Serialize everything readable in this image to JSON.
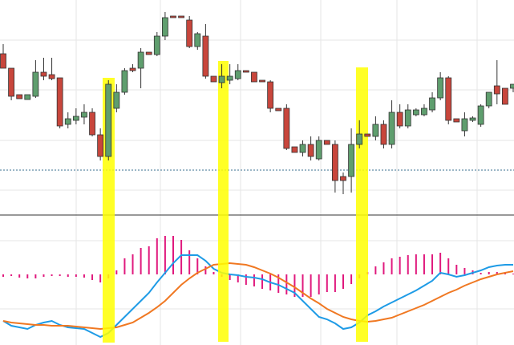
{
  "chart_data": [
    {
      "type": "candlestick",
      "open": [
        203,
        185,
        152,
        146,
        150,
        180,
        177,
        173,
        115,
        120,
        124,
        130,
        102,
        75,
        135,
        155,
        185,
        185,
        205,
        202,
        225,
        250,
        250,
        245,
        212,
        225,
        175,
        167,
        170,
        172,
        182,
        180,
        170,
        168,
        135,
        135,
        87,
        80,
        90,
        72,
        95,
        90,
        50,
        50,
        90,
        103,
        100,
        115,
        90,
        130,
        113,
        127,
        127,
        133,
        148,
        173,
        122,
        107,
        120,
        115,
        138,
        163,
        160,
        160
      ],
      "high": [
        215,
        185,
        152,
        152,
        195,
        198,
        198,
        173,
        130,
        135,
        140,
        135,
        110,
        170,
        165,
        185,
        190,
        210,
        205,
        230,
        255,
        250,
        250,
        250,
        230,
        240,
        175,
        190,
        190,
        190,
        182,
        180,
        170,
        170,
        135,
        140,
        87,
        95,
        100,
        100,
        95,
        95,
        55,
        110,
        120,
        103,
        125,
        120,
        145,
        140,
        140,
        135,
        140,
        155,
        180,
        175,
        122,
        130,
        125,
        140,
        155,
        195,
        160,
        165
      ],
      "low": [
        185,
        145,
        147,
        146,
        148,
        170,
        170,
        110,
        110,
        115,
        115,
        100,
        70,
        70,
        130,
        152,
        180,
        160,
        202,
        200,
        220,
        248,
        248,
        210,
        208,
        172,
        168,
        160,
        165,
        170,
        180,
        168,
        168,
        130,
        132,
        83,
        80,
        75,
        70,
        70,
        90,
        30,
        28,
        30,
        85,
        100,
        95,
        85,
        85,
        110,
        110,
        125,
        125,
        130,
        145,
        115,
        118,
        100,
        118,
        112,
        135,
        140,
        140,
        155
      ],
      "close": [
        185,
        150,
        147,
        152,
        180,
        175,
        172,
        113,
        122,
        125,
        130,
        102,
        75,
        165,
        155,
        182,
        182,
        205,
        202,
        225,
        248,
        248,
        248,
        212,
        228,
        175,
        168,
        175,
        175,
        182,
        180,
        168,
        168,
        135,
        132,
        85,
        80,
        90,
        75,
        95,
        90,
        45,
        45,
        90,
        103,
        100,
        115,
        90,
        130,
        113,
        133,
        133,
        135,
        148,
        173,
        120,
        118,
        122,
        123,
        138,
        155,
        153,
        140,
        165
      ],
      "up_color": "#5f9e6e",
      "down_color": "#c8463c",
      "ylim": [
        0,
        270
      ],
      "ref_line": 58
    },
    {
      "type": "macd",
      "histogram": [
        -3,
        -2,
        -4,
        -5,
        -5,
        -3,
        -2,
        -2,
        -3,
        -3,
        -4,
        -7,
        -10,
        -5,
        5,
        20,
        25,
        33,
        35,
        45,
        48,
        48,
        43,
        30,
        20,
        10,
        3,
        -3,
        -7,
        -10,
        -13,
        -15,
        -18,
        -20,
        -23,
        -25,
        -28,
        -28,
        -28,
        -25,
        -22,
        -22,
        -18,
        -12,
        -5,
        3,
        10,
        15,
        20,
        22,
        24,
        25,
        25,
        25,
        27,
        20,
        12,
        8,
        5,
        2,
        3,
        3,
        2,
        1
      ],
      "histogram_color": "#e0197d",
      "series": [
        {
          "color": "#1e9be6",
          "values": [
            -58,
            -64,
            -66,
            -68,
            -63,
            -60,
            -58,
            -63,
            -66,
            -67,
            -68,
            -73,
            -78,
            -73,
            -63,
            -53,
            -43,
            -33,
            -23,
            -10,
            2,
            14,
            24,
            24,
            24,
            17,
            7,
            2,
            0,
            -1,
            -3,
            -4,
            -6,
            -10,
            -13,
            -18,
            -23,
            -33,
            -43,
            -53,
            -56,
            -61,
            -68,
            -66,
            -60,
            -51,
            -46,
            -40,
            -35,
            -30,
            -25,
            -20,
            -14,
            -8,
            2,
            0,
            -3,
            -1,
            2,
            5,
            9,
            11,
            12,
            12
          ]
        },
        {
          "color": "#f07822",
          "values": [
            -58,
            -60,
            -61,
            -62,
            -63,
            -63,
            -64,
            -64,
            -64,
            -65,
            -66,
            -67,
            -68,
            -67,
            -66,
            -63,
            -60,
            -54,
            -48,
            -41,
            -33,
            -23,
            -13,
            -5,
            2,
            7,
            12,
            13,
            14,
            13,
            12,
            9,
            5,
            1,
            -4,
            -10,
            -16,
            -23,
            -30,
            -36,
            -43,
            -48,
            -53,
            -56,
            -58,
            -59,
            -58,
            -56,
            -54,
            -50,
            -46,
            -42,
            -38,
            -33,
            -28,
            -23,
            -19,
            -14,
            -10,
            -6,
            -3,
            0,
            2,
            4
          ]
        }
      ],
      "ylim": [
        -88,
        72
      ]
    }
  ]
}
